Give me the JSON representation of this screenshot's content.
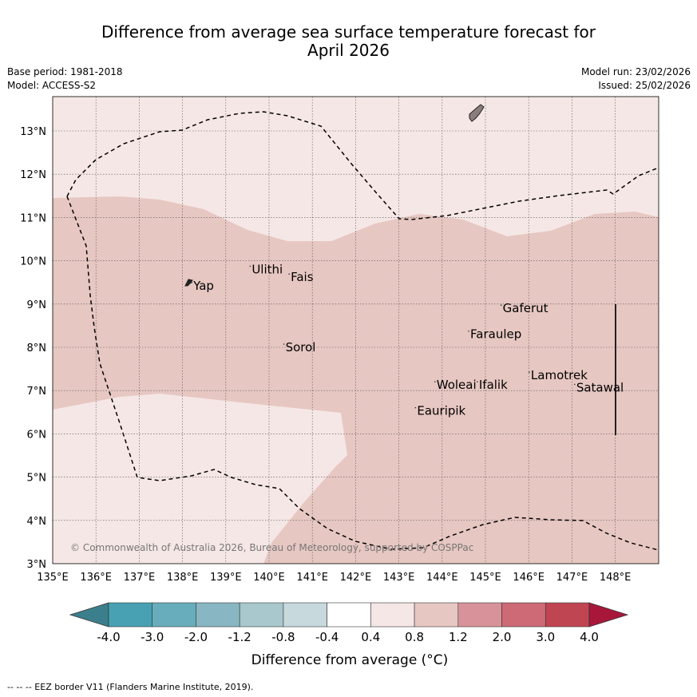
{
  "title": {
    "line1": "Difference from average sea surface temperature forecast for",
    "line2": "April 2026"
  },
  "meta": {
    "base_period": "Base period: 1981-2018",
    "model": "Model: ACCESS-S2",
    "model_run": "Model run: 23/02/2026",
    "issued": "Issued: 25/02/2026"
  },
  "map": {
    "lon_labels": [
      "135°E",
      "136°E",
      "137°E",
      "138°E",
      "139°E",
      "140°E",
      "141°E",
      "142°E",
      "143°E",
      "144°E",
      "145°E",
      "146°E",
      "147°E",
      "148°E"
    ],
    "lat_labels": [
      "3°N",
      "4°N",
      "5°N",
      "6°N",
      "7°N",
      "8°N",
      "9°N",
      "10°N",
      "11°N",
      "12°N",
      "13°N"
    ],
    "places": [
      {
        "name": "Ulithi",
        "lon": 139.6,
        "lat": 9.8
      },
      {
        "name": "Fais",
        "lon": 140.5,
        "lat": 9.62
      },
      {
        "name": "Yap",
        "lon": 138.25,
        "lat": 9.42
      },
      {
        "name": "Gaferut",
        "lon": 145.4,
        "lat": 8.9
      },
      {
        "name": "Faraulep",
        "lon": 144.65,
        "lat": 8.3
      },
      {
        "name": "Sorol",
        "lon": 140.38,
        "lat": 8.0
      },
      {
        "name": "Lamotrek",
        "lon": 146.05,
        "lat": 7.35
      },
      {
        "name": "Woleai",
        "lon": 143.87,
        "lat": 7.13
      },
      {
        "name": "Ifalik",
        "lon": 144.85,
        "lat": 7.13
      },
      {
        "name": "Satawal",
        "lon": 147.1,
        "lat": 7.07
      },
      {
        "name": "Eauripik",
        "lon": 143.42,
        "lat": 6.53
      }
    ],
    "copyright": "© Commonwealth of Australia 2026, Bureau of Meteorology, supported by COSPPac"
  },
  "legend": {
    "tick_labels": [
      "-4.0",
      "-3.0",
      "-2.0",
      "-1.2",
      "-0.8",
      "-0.4",
      "0.4",
      "0.8",
      "1.2",
      "2.0",
      "3.0",
      "4.0"
    ],
    "label": "Difference from average (°C)",
    "under_color": "#3b7f8c",
    "over_color": "#a8173a",
    "colors": [
      "#48a1b3",
      "#68adbb",
      "#88b6c2",
      "#a8c8ce",
      "#c8d9dd",
      "#ffffff",
      "#f5e7e5",
      "#e7c7c2",
      "#d8939a",
      "#cd6a76",
      "#c04553"
    ]
  },
  "footer": "--  --  -- EEZ border V11 (Flanders Marine Institute, 2019)."
}
